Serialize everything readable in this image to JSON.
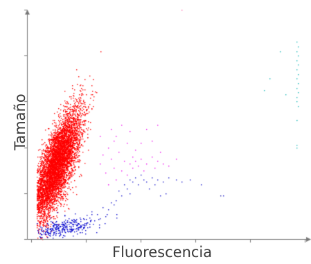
{
  "chart_data": {
    "type": "scatter",
    "title": "",
    "xlabel": "Fluorescencia",
    "ylabel": "Tamaño",
    "xlim": [
      0,
      1
    ],
    "ylim": [
      0,
      1
    ],
    "grid": false,
    "legend": "none",
    "tick_labels_shown": false,
    "series": [
      {
        "color": "#ff0000",
        "description": "dense cluster, low fluorescence, mid-to-high size",
        "count": 6000,
        "center": [
          0.09,
          0.32
        ],
        "spread": [
          0.045,
          0.12
        ],
        "correlation": 0.75
      },
      {
        "color": "#0000cc",
        "description": "small band along bottom, low size",
        "count": 300,
        "center": [
          0.12,
          0.05
        ],
        "spread": [
          0.06,
          0.025
        ],
        "correlation": 0.6
      },
      {
        "color": "#ee00ee",
        "description": "sparse scatter, mid fluorescence",
        "points": [
          [
            0.25,
            0.33
          ],
          [
            0.27,
            0.29
          ],
          [
            0.28,
            0.24
          ],
          [
            0.29,
            0.35
          ],
          [
            0.3,
            0.31
          ],
          [
            0.31,
            0.26
          ],
          [
            0.32,
            0.38
          ],
          [
            0.33,
            0.3
          ],
          [
            0.34,
            0.34
          ],
          [
            0.35,
            0.28
          ],
          [
            0.36,
            0.33
          ],
          [
            0.37,
            0.31
          ],
          [
            0.37,
            0.36
          ],
          [
            0.38,
            0.34
          ],
          [
            0.39,
            0.32
          ],
          [
            0.4,
            0.35
          ],
          [
            0.41,
            0.3
          ],
          [
            0.42,
            0.33
          ],
          [
            0.44,
            0.36
          ],
          [
            0.45,
            0.31
          ],
          [
            0.46,
            0.34
          ],
          [
            0.48,
            0.33
          ],
          [
            0.5,
            0.32
          ],
          [
            0.3,
            0.43
          ],
          [
            0.36,
            0.47
          ],
          [
            0.42,
            0.48
          ],
          [
            0.46,
            0.5
          ],
          [
            0.33,
            0.5
          ],
          [
            0.4,
            0.42
          ],
          [
            0.28,
            0.4
          ],
          [
            0.53,
            0.35
          ],
          [
            0.47,
            0.38
          ],
          [
            0.25,
            0.45
          ],
          [
            0.35,
            0.42
          ],
          [
            0.38,
            0.39
          ],
          [
            0.26,
            0.37
          ],
          [
            0.31,
            0.45
          ],
          [
            0.44,
            0.43
          ],
          [
            0.29,
            0.48
          ]
        ]
      },
      {
        "color": "#1818cc",
        "description": "sparse tail rising to the right",
        "points": [
          [
            0.22,
            0.12
          ],
          [
            0.24,
            0.11
          ],
          [
            0.26,
            0.14
          ],
          [
            0.27,
            0.1
          ],
          [
            0.29,
            0.16
          ],
          [
            0.31,
            0.17
          ],
          [
            0.32,
            0.21
          ],
          [
            0.33,
            0.19
          ],
          [
            0.34,
            0.24
          ],
          [
            0.35,
            0.22
          ],
          [
            0.36,
            0.26
          ],
          [
            0.37,
            0.25
          ],
          [
            0.38,
            0.27
          ],
          [
            0.39,
            0.24
          ],
          [
            0.4,
            0.28
          ],
          [
            0.41,
            0.26
          ],
          [
            0.42,
            0.25
          ],
          [
            0.44,
            0.27
          ],
          [
            0.45,
            0.24
          ],
          [
            0.46,
            0.26
          ],
          [
            0.48,
            0.25
          ],
          [
            0.49,
            0.2
          ],
          [
            0.5,
            0.27
          ],
          [
            0.53,
            0.26
          ],
          [
            0.55,
            0.25
          ],
          [
            0.58,
            0.26
          ],
          [
            0.62,
            0.24
          ],
          [
            0.7,
            0.19
          ],
          [
            0.28,
            0.13
          ],
          [
            0.3,
            0.15
          ],
          [
            0.25,
            0.09
          ],
          [
            0.36,
            0.2
          ],
          [
            0.43,
            0.22
          ],
          [
            0.47,
            0.19
          ]
        ]
      },
      {
        "color": "#22bbbb",
        "description": "saturated column at right edge plus a few outliers",
        "points": [
          [
            0.97,
            0.86
          ],
          [
            0.975,
            0.84
          ],
          [
            0.97,
            0.82
          ],
          [
            0.975,
            0.8
          ],
          [
            0.97,
            0.78
          ],
          [
            0.975,
            0.76
          ],
          [
            0.97,
            0.74
          ],
          [
            0.975,
            0.72
          ],
          [
            0.97,
            0.7
          ],
          [
            0.975,
            0.68
          ],
          [
            0.97,
            0.66
          ],
          [
            0.975,
            0.64
          ],
          [
            0.97,
            0.62
          ],
          [
            0.97,
            0.6
          ],
          [
            0.975,
            0.58
          ],
          [
            0.97,
            0.52
          ],
          [
            0.97,
            0.41
          ],
          [
            0.97,
            0.4
          ],
          [
            0.97,
            0.52
          ],
          [
            0.91,
            0.82
          ],
          [
            0.87,
            0.7
          ],
          [
            0.85,
            0.65
          ],
          [
            0.93,
            0.63
          ]
        ]
      },
      {
        "color": "#ff66aa",
        "description": "single outlier at top",
        "points": [
          [
            0.55,
            1.0
          ]
        ]
      },
      {
        "color": "#2222aa",
        "description": "single isolated point",
        "points": [
          [
            0.69,
            0.19
          ]
        ]
      }
    ]
  }
}
